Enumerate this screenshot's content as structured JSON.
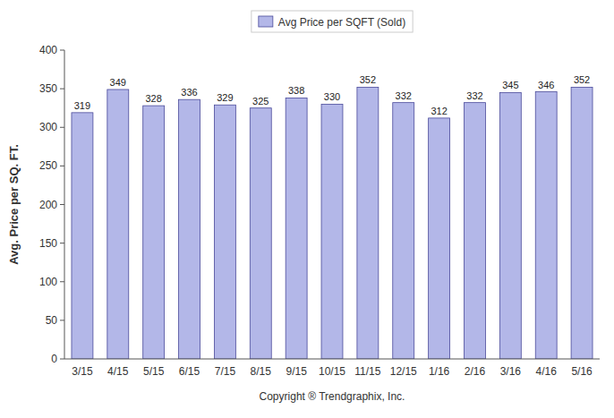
{
  "chart_data": {
    "type": "bar",
    "categories": [
      "3/15",
      "4/15",
      "5/15",
      "6/15",
      "7/15",
      "8/15",
      "9/15",
      "10/15",
      "11/15",
      "12/15",
      "1/16",
      "2/16",
      "3/16",
      "4/16",
      "5/16"
    ],
    "series": [
      {
        "name": "Avg Price per SQFT (Sold)",
        "color": "#b3b7e8",
        "values": [
          319,
          349,
          328,
          336,
          329,
          325,
          338,
          330,
          352,
          332,
          312,
          332,
          345,
          346,
          352
        ]
      }
    ],
    "ylabel": "Avg. Price per SQ. FT.",
    "xlabel": "Copyright ® Trendgraphix, Inc.",
    "ylim": [
      0,
      400
    ],
    "yticks": [
      0,
      50,
      100,
      150,
      200,
      250,
      300,
      350,
      400
    ],
    "grid": false,
    "legend": "top",
    "data_labels": true
  }
}
